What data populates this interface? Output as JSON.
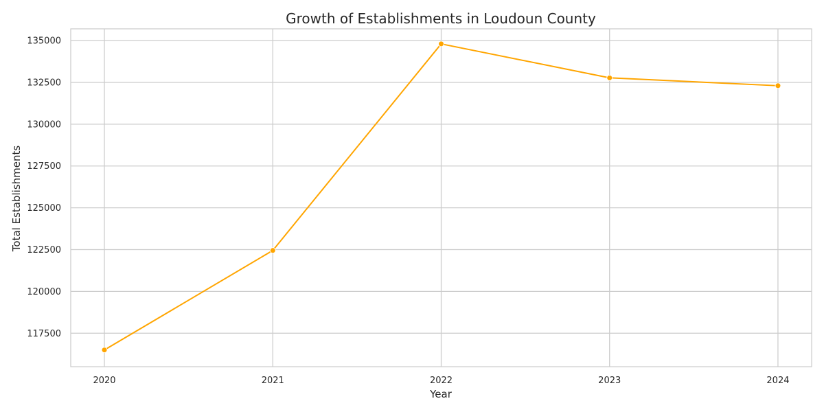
{
  "chart_data": {
    "type": "line",
    "title": "Growth of Establishments in Loudoun County",
    "xlabel": "Year",
    "ylabel": "Total Establishments",
    "x": [
      2020,
      2021,
      2022,
      2023,
      2024
    ],
    "series": [
      {
        "values": [
          116500,
          122450,
          134800,
          132770,
          132300
        ]
      }
    ],
    "xlim": [
      2019.8,
      2024.2
    ],
    "ylim": [
      115500,
      135700
    ],
    "x_ticks": [
      "2020",
      "2021",
      "2022",
      "2023",
      "2024"
    ],
    "y_ticks": [
      "117500",
      "120000",
      "122500",
      "125000",
      "127500",
      "130000",
      "132500",
      "135000"
    ],
    "grid": true,
    "legend": "none",
    "colors": {
      "line": "#ffa500",
      "grid": "#cccccc",
      "frame": "#cccccc",
      "text": "#262626",
      "background": "#ffffff"
    }
  }
}
